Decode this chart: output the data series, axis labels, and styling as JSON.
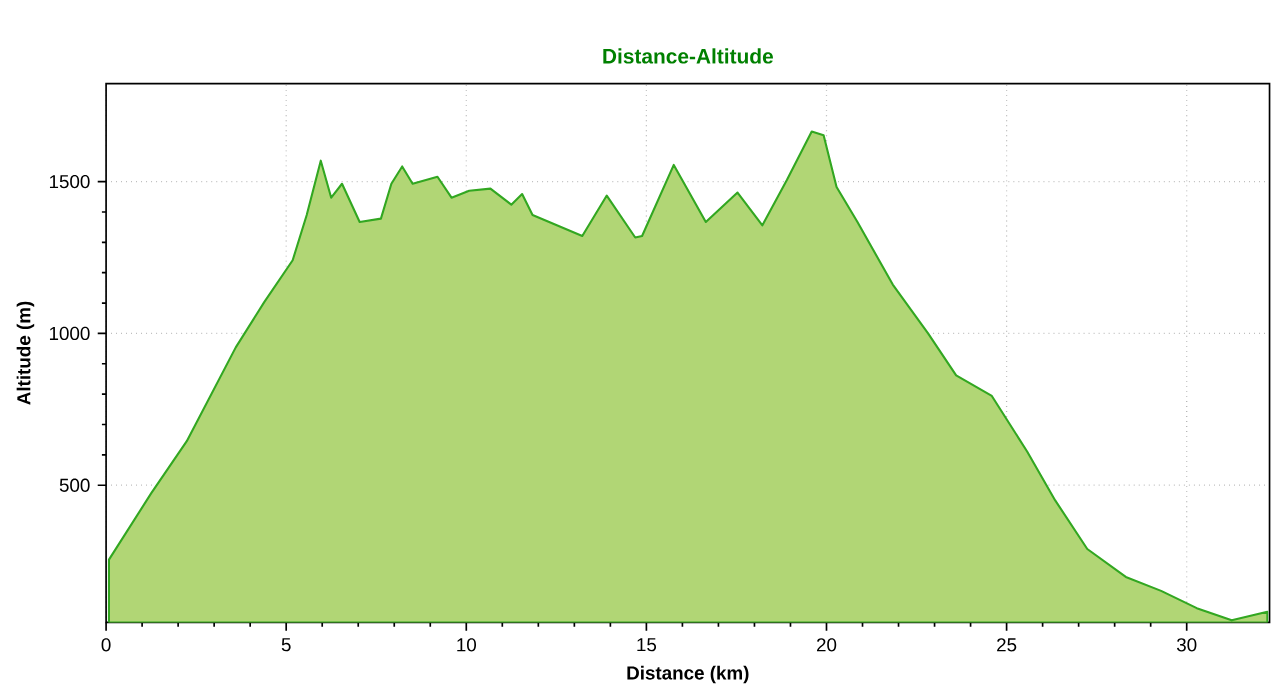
{
  "chart_data": {
    "type": "area",
    "title": "Distance-Altitude",
    "xlabel": "Distance (km)",
    "ylabel": "Altitude (m)",
    "xlim": [
      0,
      32.3
    ],
    "ylim": [
      48,
      1823
    ],
    "xticks": [
      0,
      5,
      10,
      15,
      20,
      25,
      30
    ],
    "yticks": [
      500,
      1000,
      1500
    ],
    "grid": true,
    "series": [
      {
        "color": "#b1d675",
        "x": [
          0.08,
          1.25,
          2.24,
          3.6,
          4.39,
          5.18,
          5.57,
          5.96,
          6.25,
          6.55,
          7.04,
          7.63,
          7.92,
          8.22,
          8.51,
          9.2,
          9.59,
          10.08,
          10.67,
          11.25,
          11.55,
          11.84,
          13.22,
          13.9,
          14.69,
          14.88,
          15.76,
          16.65,
          17.53,
          18.22,
          18.9,
          19.59,
          19.92,
          20.28,
          20.86,
          21.84,
          22.82,
          23.6,
          24.59,
          25.57,
          26.35,
          27.24,
          28.31,
          29.29,
          30.28,
          31.25,
          32.24
        ],
        "values": [
          255,
          473,
          645,
          954,
          1103,
          1241,
          1390,
          1569,
          1447,
          1493,
          1367,
          1378,
          1493,
          1550,
          1493,
          1516,
          1447,
          1470,
          1477,
          1424,
          1459,
          1390,
          1321,
          1454,
          1316,
          1321,
          1555,
          1367,
          1464,
          1356,
          1505,
          1665,
          1653,
          1482,
          1367,
          1161,
          1000,
          862,
          794,
          611,
          450,
          290,
          198,
          152,
          95,
          55,
          83
        ]
      }
    ]
  }
}
